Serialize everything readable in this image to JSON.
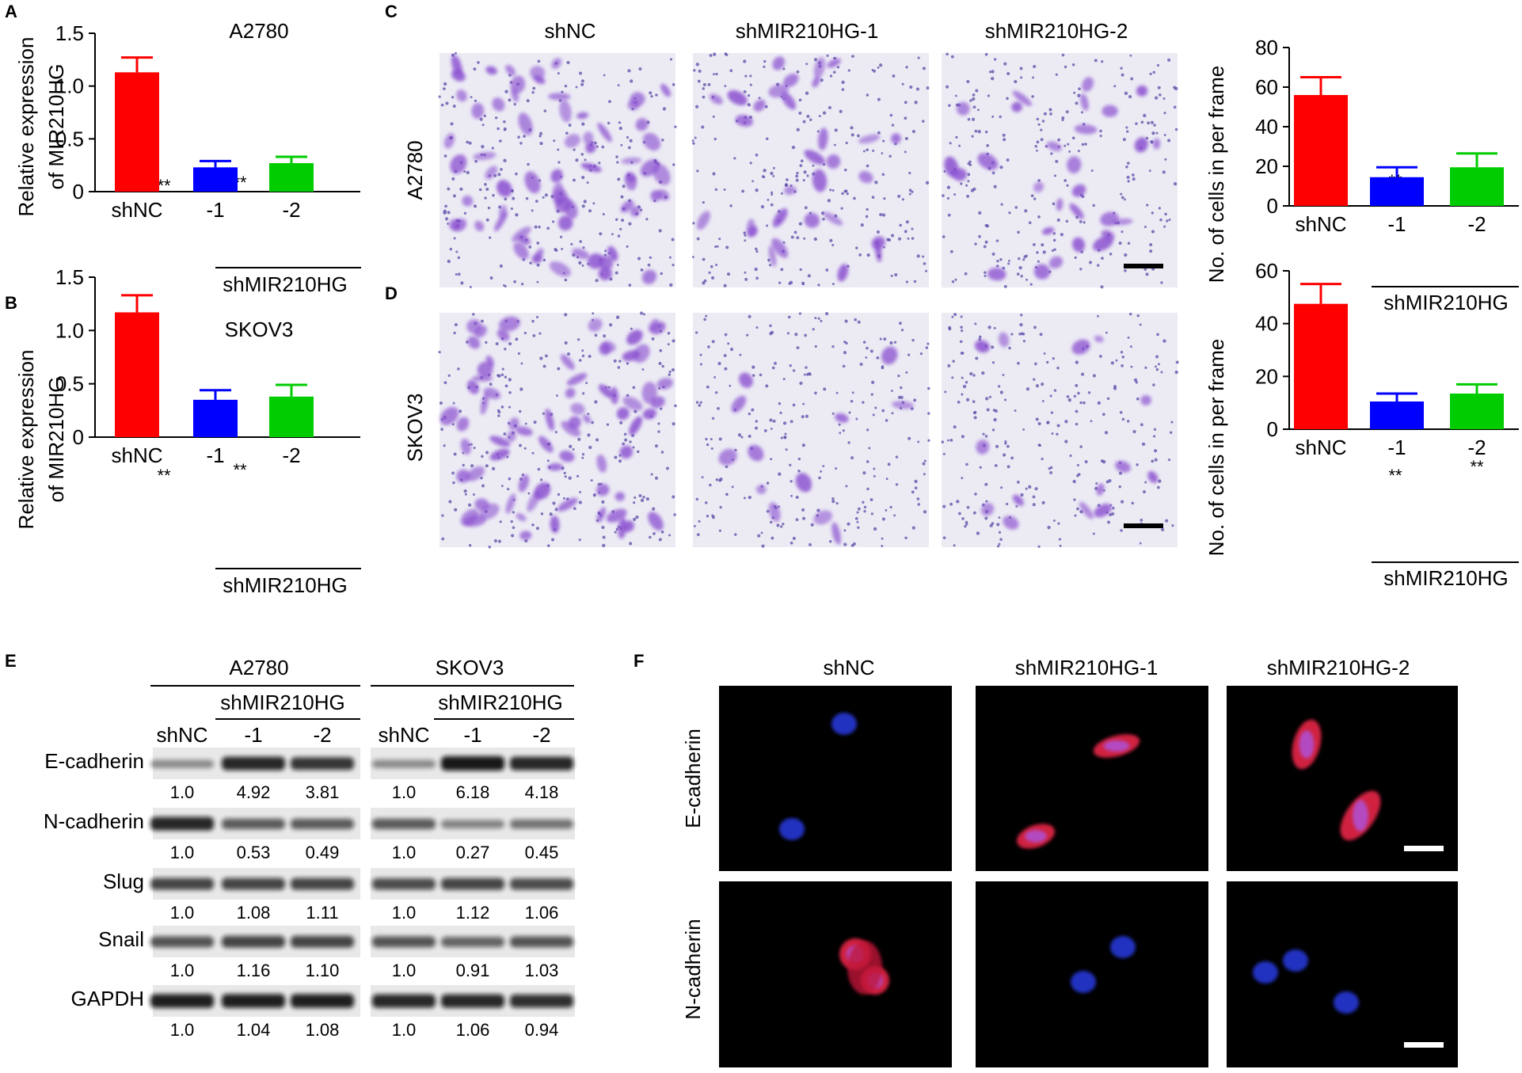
{
  "panels": {
    "A": {
      "letter": "A",
      "cell_line": "A2780",
      "ylabel_1": "Relative expression",
      "ylabel_2": "of MIR210HG",
      "group_label": "shMIR210HG",
      "stars": [
        "**",
        "**"
      ]
    },
    "B": {
      "letter": "B",
      "cell_line": "SKOV3",
      "ylabel_1": "Relative expression",
      "ylabel_2": "of MIR210HG",
      "group_label": "shMIR210HG",
      "stars": [
        "**",
        "**"
      ]
    },
    "C": {
      "letter": "C",
      "row_label": "A2780",
      "columns": [
        "shNC",
        "shMIR210HG-1",
        "shMIR210HG-2"
      ],
      "ylabel": "No. of cells in per frame",
      "group_label": "shMIR210HG",
      "stars": [
        "**",
        "**"
      ]
    },
    "D": {
      "letter": "D",
      "row_label": "SKOV3",
      "ylabel": "No. of cells in per frame",
      "group_label": "shMIR210HG",
      "stars": [
        "**",
        "**"
      ]
    },
    "E": {
      "letter": "E",
      "cell_lines": [
        "A2780",
        "SKOV3"
      ],
      "group_label": "shMIR210HG",
      "lanes": [
        "shNC",
        "-1",
        "-2"
      ],
      "proteins": [
        {
          "name": "E-cadherin",
          "a2780": [
            "1.0",
            "4.92",
            "3.81"
          ],
          "skov3": [
            "1.0",
            "6.18",
            "4.18"
          ]
        },
        {
          "name": "N-cadherin",
          "a2780": [
            "1.0",
            "0.53",
            "0.49"
          ],
          "skov3": [
            "1.0",
            "0.27",
            "0.45"
          ]
        },
        {
          "name": "Slug",
          "a2780": [
            "1.0",
            "1.08",
            "1.11"
          ],
          "skov3": [
            "1.0",
            "1.12",
            "1.06"
          ]
        },
        {
          "name": "Snail",
          "a2780": [
            "1.0",
            "1.16",
            "1.10"
          ],
          "skov3": [
            "1.0",
            "0.91",
            "1.03"
          ]
        },
        {
          "name": "GAPDH",
          "a2780": [
            "1.0",
            "1.04",
            "1.08"
          ],
          "skov3": [
            "1.0",
            "1.06",
            "0.94"
          ]
        }
      ]
    },
    "F": {
      "letter": "F",
      "columns": [
        "shNC",
        "shMIR210HG-1",
        "shMIR210HG-2"
      ],
      "rows": [
        "E-cadherin",
        "N-cadherin"
      ]
    }
  },
  "colors": {
    "shNC": "#ff0000",
    "sh1": "#0000ff",
    "sh2": "#00cc00",
    "stain_bg": "#ecebf4",
    "stain_cell": "#8a4fd0",
    "fluor_bg": "#000000"
  },
  "chart_data": [
    {
      "type": "bar",
      "title": "A2780",
      "categories": [
        "shNC",
        "-1",
        "-2"
      ],
      "values": [
        1.13,
        0.23,
        0.27
      ],
      "errors": [
        0.14,
        0.06,
        0.06
      ],
      "ylabel": "Relative expression of MIR210HG",
      "ylim": [
        0,
        1.5
      ],
      "yticks": [
        "0",
        "0.5",
        "1.0",
        "1.5"
      ]
    },
    {
      "type": "bar",
      "title": "SKOV3",
      "categories": [
        "shNC",
        "-1",
        "-2"
      ],
      "values": [
        1.17,
        0.35,
        0.38
      ],
      "errors": [
        0.16,
        0.09,
        0.11
      ],
      "ylabel": "Relative expression of MIR210HG",
      "ylim": [
        0,
        1.5
      ],
      "yticks": [
        "0",
        "0.5",
        "1.0",
        "1.5"
      ]
    },
    {
      "type": "bar",
      "title": "",
      "categories": [
        "shNC",
        "-1",
        "-2"
      ],
      "values": [
        56,
        14.5,
        19.5
      ],
      "errors": [
        9,
        5,
        7
      ],
      "ylabel": "No. of cells in per frame",
      "ylim": [
        0,
        80
      ],
      "yticks": [
        "0",
        "20",
        "40",
        "60",
        "80"
      ]
    },
    {
      "type": "bar",
      "title": "",
      "categories": [
        "shNC",
        "-1",
        "-2"
      ],
      "values": [
        47.5,
        10.5,
        13.5
      ],
      "errors": [
        7.5,
        3,
        3.5
      ],
      "ylabel": "No. of cells in per frame",
      "ylim": [
        0,
        60
      ],
      "yticks": [
        "0",
        "20",
        "40",
        "60"
      ]
    }
  ]
}
